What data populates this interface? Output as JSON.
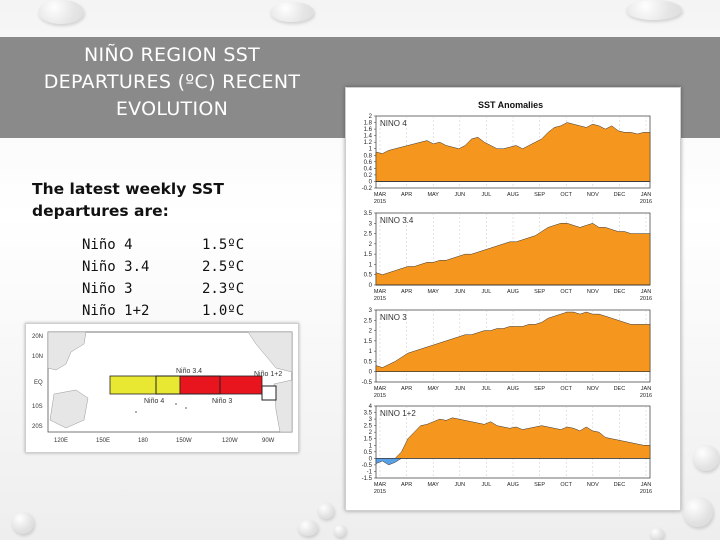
{
  "slide": {
    "title": "NIÑO REGION SST DEPARTURES (ºC) RECENT EVOLUTION",
    "intro": "The latest weekly SST departures are:",
    "regions": [
      {
        "name": "Niño 4",
        "value": "1.5ºC"
      },
      {
        "name": "Niño 3.4",
        "value": "2.5ºC"
      },
      {
        "name": "Niño 3",
        "value": "2.3ºC"
      },
      {
        "name": "Niño 1+2",
        "value": "1.0ºC"
      }
    ]
  },
  "map": {
    "lat_labels": [
      "20N",
      "10N",
      "EQ",
      "10S",
      "20S"
    ],
    "lon_labels": [
      "120E",
      "150E",
      "180",
      "150W",
      "120W",
      "90W"
    ],
    "box_labels": {
      "nino34": "Niño 3.4",
      "nino12": "Niño 1+2",
      "nino4": "Niño 4",
      "nino3": "Niño 3"
    },
    "colors": {
      "nino4": "#e8e832",
      "nino3": "#e8141e",
      "land": "#e6e6e6"
    }
  },
  "chart_data": {
    "type": "area",
    "title": "SST Anomalies",
    "x_ticks": [
      "MAR\n2015",
      "APR",
      "MAY",
      "JUN",
      "JUL",
      "AUG",
      "SEP",
      "OCT",
      "NOV",
      "DEC",
      "JAN\n2016"
    ],
    "colors": {
      "positive": "#f5961e",
      "negative": "#5aa0e6"
    },
    "panels": [
      {
        "label": "NINO 4",
        "ylim": [
          -0.2,
          2
        ],
        "yticks": [
          "2",
          "1.8",
          "1.6",
          "1.4",
          "1.2",
          "1",
          "0.8",
          "0.6",
          "0.4",
          "0.2",
          "0",
          "-0.2"
        ],
        "values": [
          0.9,
          0.85,
          0.95,
          1.0,
          1.05,
          1.1,
          1.15,
          1.2,
          1.25,
          1.15,
          1.2,
          1.1,
          1.05,
          1.0,
          1.1,
          1.3,
          1.35,
          1.2,
          1.1,
          1.0,
          1.0,
          1.05,
          1.1,
          1.0,
          1.1,
          1.2,
          1.3,
          1.5,
          1.65,
          1.7,
          1.8,
          1.75,
          1.7,
          1.65,
          1.75,
          1.7,
          1.6,
          1.7,
          1.55,
          1.5,
          1.5,
          1.45,
          1.5,
          1.5
        ]
      },
      {
        "label": "NINO 3.4",
        "ylim": [
          0,
          3.5
        ],
        "yticks": [
          "3.5",
          "3",
          "2.5",
          "2",
          "1.5",
          "1",
          "0.5",
          "0"
        ],
        "values": [
          0.6,
          0.5,
          0.6,
          0.7,
          0.8,
          0.9,
          0.9,
          1.0,
          1.1,
          1.1,
          1.2,
          1.2,
          1.3,
          1.4,
          1.5,
          1.5,
          1.6,
          1.7,
          1.8,
          1.9,
          2.0,
          2.1,
          2.1,
          2.2,
          2.3,
          2.4,
          2.6,
          2.8,
          2.9,
          3.0,
          3.0,
          2.9,
          2.8,
          2.9,
          3.0,
          2.8,
          2.8,
          2.7,
          2.6,
          2.6,
          2.5,
          2.5,
          2.5,
          2.5
        ]
      },
      {
        "label": "NINO 3",
        "ylim": [
          -0.5,
          3
        ],
        "yticks": [
          "3",
          "2.5",
          "2",
          "1.5",
          "1",
          "0.5",
          "0",
          "-0.5"
        ],
        "values": [
          0.3,
          0.2,
          0.35,
          0.5,
          0.7,
          0.9,
          1.0,
          1.1,
          1.2,
          1.3,
          1.4,
          1.5,
          1.6,
          1.7,
          1.8,
          1.8,
          1.9,
          2.0,
          2.0,
          2.1,
          2.1,
          2.2,
          2.2,
          2.2,
          2.3,
          2.3,
          2.4,
          2.6,
          2.7,
          2.8,
          2.9,
          2.9,
          2.8,
          2.9,
          2.8,
          2.8,
          2.7,
          2.6,
          2.5,
          2.4,
          2.3,
          2.3,
          2.3,
          2.3
        ]
      },
      {
        "label": "NINO 1+2",
        "ylim": [
          -1.5,
          4
        ],
        "yticks": [
          "4",
          "3.5",
          "3",
          "2.5",
          "2",
          "1.5",
          "1",
          "0.5",
          "0",
          "-0.5",
          "-1",
          "-1.5"
        ],
        "values": [
          -0.4,
          -0.2,
          -0.5,
          -0.3,
          0.5,
          1.5,
          2.0,
          2.5,
          2.6,
          2.8,
          3.0,
          2.9,
          3.1,
          3.0,
          2.9,
          2.8,
          2.7,
          2.6,
          2.8,
          2.5,
          2.4,
          2.3,
          2.4,
          2.2,
          2.3,
          2.4,
          2.5,
          2.4,
          2.3,
          2.2,
          2.4,
          2.3,
          2.1,
          2.4,
          2.1,
          2.0,
          1.6,
          1.5,
          1.4,
          1.3,
          1.2,
          1.1,
          1.0,
          1.0
        ]
      }
    ]
  }
}
